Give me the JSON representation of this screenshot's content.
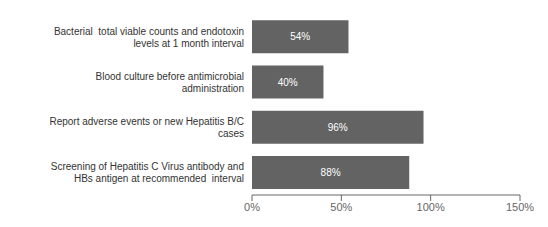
{
  "chart_data": {
    "type": "bar",
    "orientation": "horizontal",
    "categories": [
      "Screening of Hepatitis C Virus antibody and\nHBs antigen at recommended  interval",
      "Report adverse events or new Hepatitis B/C\ncases",
      "Blood culture before antimicrobial\nadministration",
      "Bacterial  total viable counts and endotoxin\nlevels at 1 month interval"
    ],
    "values": [
      88,
      96,
      40,
      54
    ],
    "value_labels": [
      "88%",
      "96%",
      "40%",
      "54%"
    ],
    "data_labels": true,
    "color": "#636363",
    "xlim": [
      0,
      150
    ],
    "xticks": [
      {
        "value": 0,
        "label": "0%"
      },
      {
        "value": 50,
        "label": "50%"
      },
      {
        "value": 100,
        "label": "100%"
      },
      {
        "value": 150,
        "label": "150%"
      }
    ],
    "grid": false
  }
}
